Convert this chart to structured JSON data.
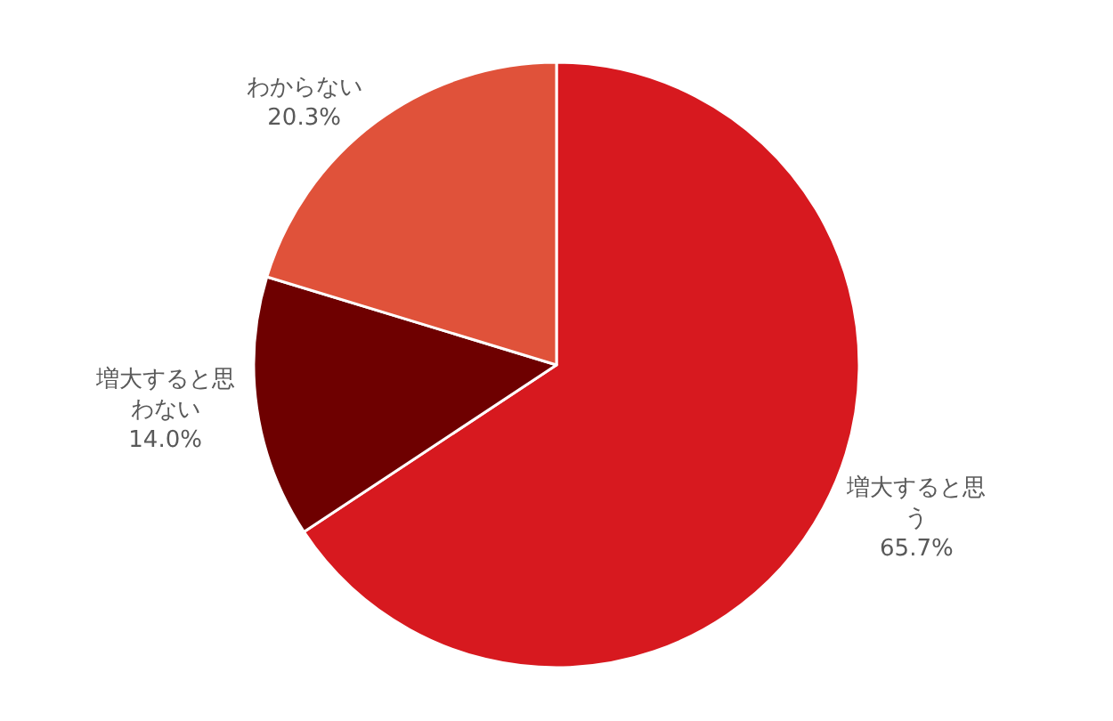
{
  "chart_data": {
    "type": "pie",
    "categories": [
      "増大すると思う",
      "増大すると思わない",
      "わからない"
    ],
    "values": [
      65.7,
      14.0,
      20.3
    ],
    "colors": [
      "#d7191f",
      "#6e0000",
      "#e0523a"
    ],
    "value_labels": [
      "65.7%",
      "14.0%",
      "20.3%"
    ],
    "legend": false
  }
}
